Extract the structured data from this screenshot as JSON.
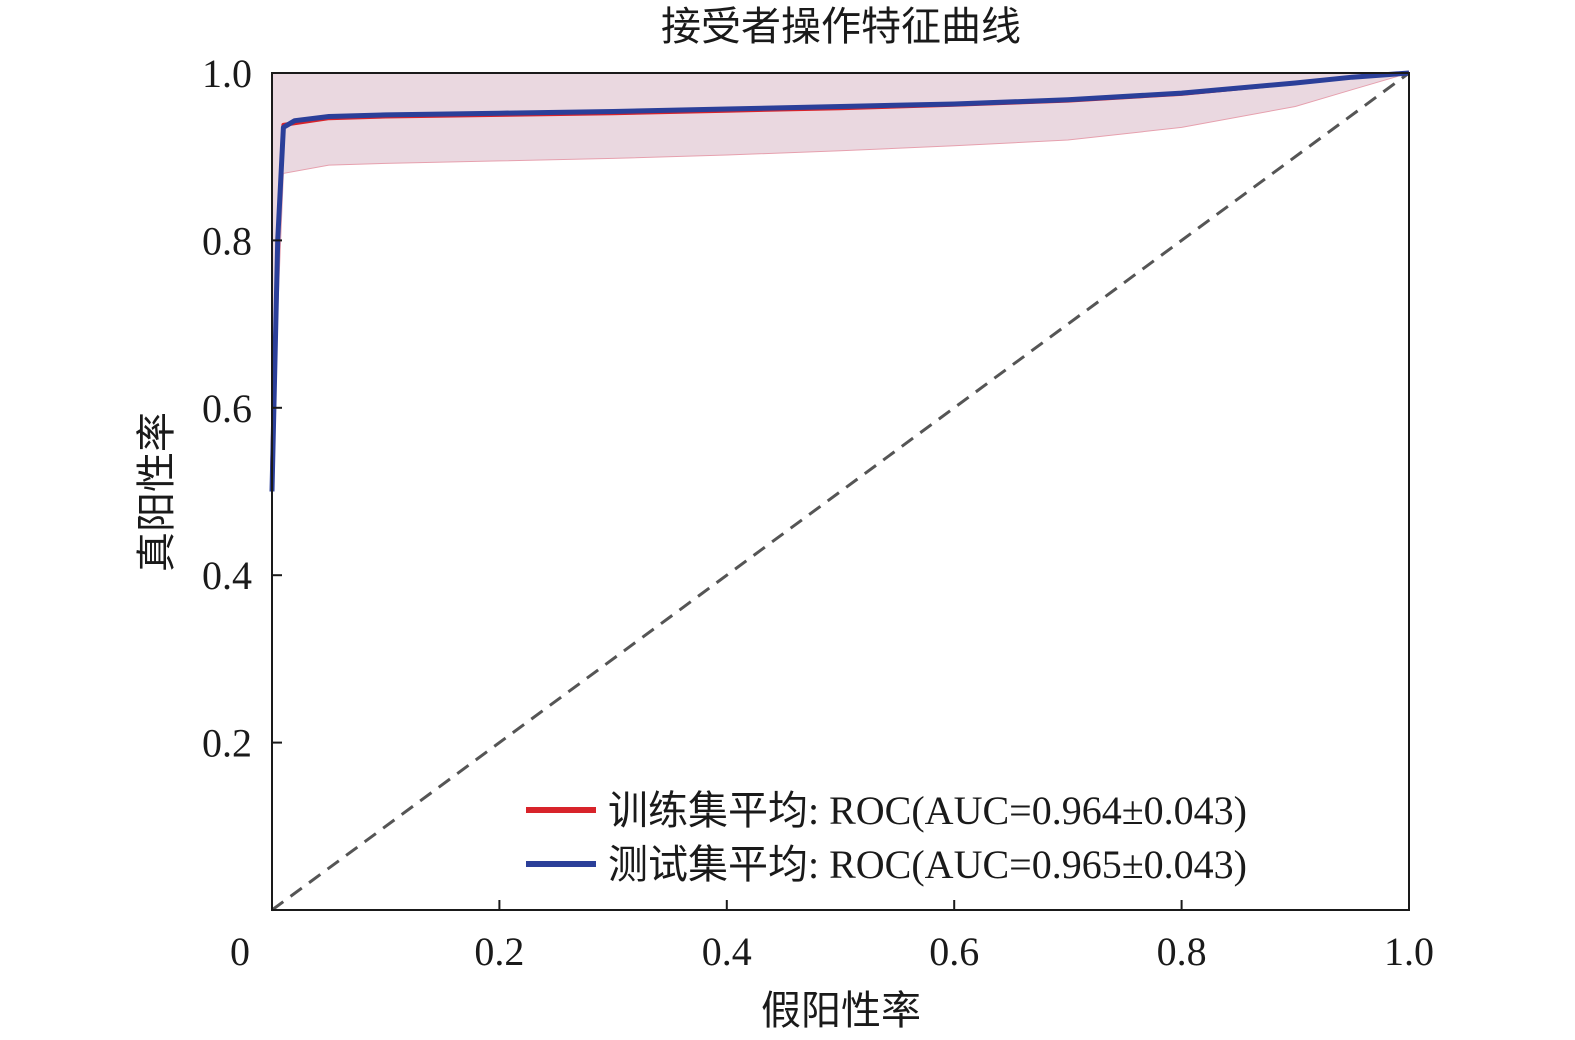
{
  "chart_data": {
    "type": "line",
    "title": "接受者操作特征曲线",
    "xlabel": "假阳性率",
    "ylabel": "真阳性率",
    "xlim": [
      0,
      1.0
    ],
    "ylim": [
      0,
      1.0
    ],
    "x_ticks": [
      {
        "value": 0,
        "label": "0"
      },
      {
        "value": 0.2,
        "label": "0.2"
      },
      {
        "value": 0.4,
        "label": "0.4"
      },
      {
        "value": 0.6,
        "label": "0.6"
      },
      {
        "value": 0.8,
        "label": "0.8"
      },
      {
        "value": 1.0,
        "label": "1.0"
      }
    ],
    "y_ticks": [
      {
        "value": 0.2,
        "label": "0.2"
      },
      {
        "value": 0.4,
        "label": "0.4"
      },
      {
        "value": 0.6,
        "label": "0.6"
      },
      {
        "value": 0.8,
        "label": "0.8"
      },
      {
        "value": 1.0,
        "label": "1.0"
      }
    ],
    "grid": false,
    "legend_position": "lower-right",
    "series": [
      {
        "name": "训练集平均: ROC(AUC=0.964±0.043)",
        "color": "#d8232a",
        "x": [
          0.0,
          0.005,
          0.01,
          0.05,
          0.1,
          0.2,
          0.3,
          0.4,
          0.5,
          0.6,
          0.7,
          0.8,
          0.9,
          0.95,
          1.0
        ],
        "y": [
          0.52,
          0.8,
          0.938,
          0.946,
          0.948,
          0.95,
          0.952,
          0.955,
          0.958,
          0.962,
          0.967,
          0.975,
          0.988,
          0.995,
          1.0
        ]
      },
      {
        "name": "测试集平均: ROC(AUC=0.965±0.043)",
        "color": "#2b3f99",
        "x": [
          0.0,
          0.005,
          0.01,
          0.02,
          0.05,
          0.1,
          0.2,
          0.3,
          0.4,
          0.5,
          0.6,
          0.7,
          0.8,
          0.9,
          0.95,
          1.0
        ],
        "y": [
          0.5,
          0.8,
          0.935,
          0.943,
          0.948,
          0.95,
          0.952,
          0.954,
          0.957,
          0.96,
          0.963,
          0.968,
          0.976,
          0.988,
          0.995,
          1.0
        ]
      }
    ],
    "std_band": {
      "color": "#d8b8c6",
      "x": [
        0.0,
        0.01,
        0.05,
        0.1,
        0.2,
        0.3,
        0.4,
        0.5,
        0.6,
        0.7,
        0.8,
        0.9,
        0.95,
        1.0
      ],
      "upper": [
        1.0,
        1.0,
        1.0,
        1.0,
        1.0,
        1.0,
        1.0,
        1.0,
        1.0,
        1.0,
        1.0,
        1.0,
        1.0,
        1.0
      ],
      "lower": [
        0.55,
        0.88,
        0.89,
        0.892,
        0.895,
        0.898,
        0.902,
        0.907,
        0.913,
        0.92,
        0.935,
        0.96,
        0.98,
        1.0
      ]
    },
    "reference_line": {
      "x": [
        0,
        1
      ],
      "y": [
        0,
        1
      ],
      "style": "dashed",
      "color": "#555555"
    }
  }
}
